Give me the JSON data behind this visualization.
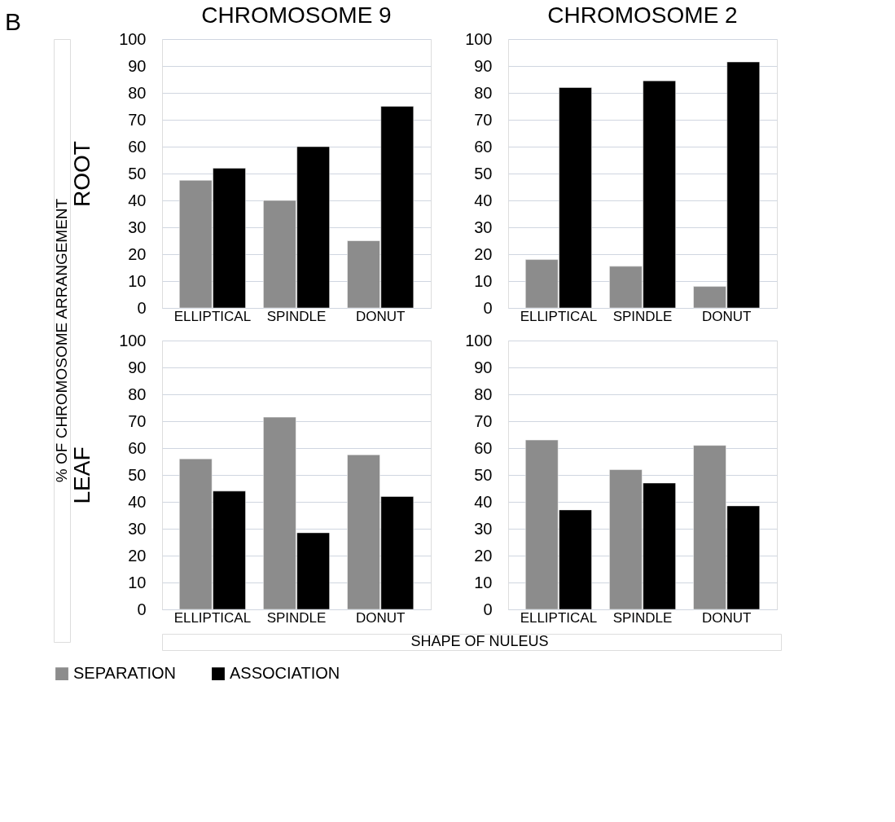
{
  "chart_data": [
    {
      "type": "bar",
      "title": "CHROMOSOME 9",
      "ylabel": "ROOT",
      "annotations": [
        "B",
        "% OF CHROMOSOME ARRANGEMENT"
      ],
      "categories": [
        "ELLIPTICAL",
        "SPINDLE",
        "DONUT"
      ],
      "series": [
        {
          "name": "SEPARATION",
          "color": "#8c8c8c",
          "values": [
            47.5,
            40,
            25
          ]
        },
        {
          "name": "ASSOCIATION",
          "color": "#000000",
          "values": [
            52,
            60,
            75
          ]
        }
      ],
      "ylim": [
        0,
        100
      ],
      "yticks": [
        0,
        10,
        20,
        30,
        40,
        50,
        60,
        70,
        80,
        90,
        100
      ],
      "grid": "y",
      "legend": "bottom"
    },
    {
      "type": "bar",
      "title": "CHROMOSOME 2",
      "categories": [
        "ELLIPTICAL",
        "SPINDLE",
        "DONUT"
      ],
      "series": [
        {
          "name": "SEPARATION",
          "color": "#8c8c8c",
          "values": [
            18,
            15.5,
            8
          ]
        },
        {
          "name": "ASSOCIATION",
          "color": "#000000",
          "values": [
            82,
            84.5,
            91.5
          ]
        }
      ],
      "ylim": [
        0,
        100
      ],
      "yticks": [
        0,
        10,
        20,
        30,
        40,
        50,
        60,
        70,
        80,
        90,
        100
      ],
      "grid": "y",
      "legend": "bottom"
    },
    {
      "type": "bar",
      "ylabel": "LEAF",
      "xlabel": "SHAPE OF NULEUS",
      "categories": [
        "ELLIPTICAL",
        "SPINDLE",
        "DONUT"
      ],
      "series": [
        {
          "name": "SEPARATION",
          "color": "#8c8c8c",
          "values": [
            56,
            71.5,
            57.5
          ]
        },
        {
          "name": "ASSOCIATION",
          "color": "#000000",
          "values": [
            44,
            28.5,
            42
          ]
        }
      ],
      "ylim": [
        0,
        100
      ],
      "yticks": [
        0,
        10,
        20,
        30,
        40,
        50,
        60,
        70,
        80,
        90,
        100
      ],
      "grid": "y",
      "legend": "bottom"
    },
    {
      "type": "bar",
      "categories": [
        "ELLIPTICAL",
        "SPINDLE",
        "DONUT"
      ],
      "series": [
        {
          "name": "SEPARATION",
          "color": "#8c8c8c",
          "values": [
            63,
            52,
            61
          ]
        },
        {
          "name": "ASSOCIATION",
          "color": "#000000",
          "values": [
            37,
            47,
            38.5
          ]
        }
      ],
      "ylim": [
        0,
        100
      ],
      "yticks": [
        0,
        10,
        20,
        30,
        40,
        50,
        60,
        70,
        80,
        90,
        100
      ],
      "grid": "y",
      "legend": "bottom"
    }
  ]
}
